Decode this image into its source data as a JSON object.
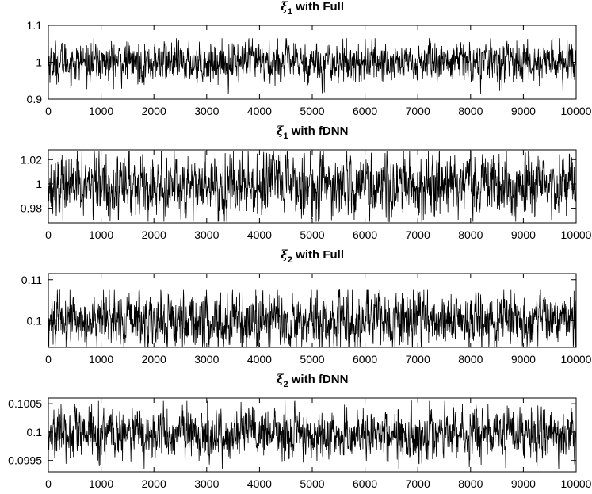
{
  "chart_data": [
    {
      "type": "line",
      "title": {
        "symbol": "ξ",
        "subscript": "1",
        "suffix": " with Full"
      },
      "xlim": [
        0,
        10000
      ],
      "ylim": [
        0.9,
        1.1
      ],
      "xticks": [
        0,
        1000,
        2000,
        3000,
        4000,
        5000,
        6000,
        7000,
        8000,
        9000,
        10000
      ],
      "yticks": [
        0.9,
        1,
        1.1
      ],
      "ytick_labels": [
        "0.9",
        "1",
        "1.1"
      ],
      "trace": {
        "points": 10000,
        "mean": 1.0,
        "spread": 0.027,
        "min": 0.915,
        "max": 1.065
      }
    },
    {
      "type": "line",
      "title": {
        "symbol": "ξ",
        "subscript": "1",
        "suffix": " with fDNN"
      },
      "xlim": [
        0,
        10000
      ],
      "ylim": [
        0.968,
        1.028
      ],
      "xticks": [
        0,
        1000,
        2000,
        3000,
        4000,
        5000,
        6000,
        7000,
        8000,
        9000,
        10000
      ],
      "yticks": [
        0.98,
        1,
        1.02
      ],
      "ytick_labels": [
        "0.98",
        "1",
        "1.02"
      ],
      "trace": {
        "points": 10000,
        "mean": 0.999,
        "spread": 0.0125,
        "min": 0.969,
        "max": 1.027
      }
    },
    {
      "type": "line",
      "title": {
        "symbol": "ξ",
        "subscript": "2",
        "suffix": " with Full"
      },
      "xlim": [
        0,
        10000
      ],
      "ylim": [
        0.0935,
        0.1115
      ],
      "xticks": [
        0,
        1000,
        2000,
        3000,
        4000,
        5000,
        6000,
        7000,
        8000,
        9000,
        10000
      ],
      "yticks": [
        0.1,
        0.11
      ],
      "ytick_labels": [
        "0.1",
        "0.11"
      ],
      "trace": {
        "points": 10000,
        "mean": 0.1,
        "spread": 0.0033,
        "min": 0.0937,
        "max": 0.1075
      }
    },
    {
      "type": "line",
      "title": {
        "symbol": "ξ",
        "subscript": "2",
        "suffix": " with fDNN"
      },
      "xlim": [
        0,
        10000
      ],
      "ylim": [
        0.0993,
        0.1006
      ],
      "xticks": [
        0,
        1000,
        2000,
        3000,
        4000,
        5000,
        6000,
        7000,
        8000,
        9000,
        10000
      ],
      "yticks": [
        0.0995,
        0.1,
        0.1005
      ],
      "ytick_labels": [
        "0.0995",
        "0.1",
        "0.1005"
      ],
      "trace": {
        "points": 10000,
        "mean": 0.09995,
        "spread": 0.00022,
        "min": 0.09935,
        "max": 0.10055
      }
    }
  ]
}
